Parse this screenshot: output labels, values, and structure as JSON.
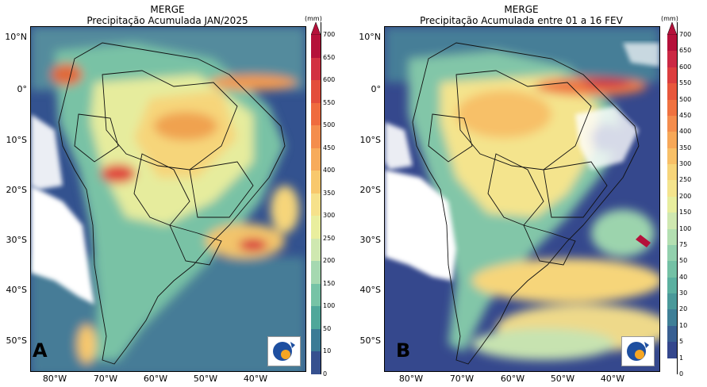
{
  "panels": [
    {
      "letter": "A",
      "title_line1": "MERGE",
      "title_line2": "Precipitação Acumulada JAN/2025",
      "colorbar": {
        "unit": "(mm)",
        "ticks": [
          "700",
          "650",
          "600",
          "550",
          "500",
          "450",
          "400",
          "350",
          "300",
          "250",
          "200",
          "150",
          "100",
          "50",
          "10",
          "0"
        ],
        "colors": [
          "#b5103a",
          "#d23142",
          "#e34d3b",
          "#ef6b3e",
          "#f48d4d",
          "#f7ab5b",
          "#f8c86d",
          "#f6e18b",
          "#e9ee9e",
          "#cfe8b0",
          "#a5d8b0",
          "#76c3a6",
          "#4fa79a",
          "#3b7b96",
          "#36508f",
          "#ffffff"
        ]
      },
      "lat_labels": [
        "10°N",
        "0°",
        "10°S",
        "20°S",
        "30°S",
        "40°S",
        "50°S"
      ],
      "lon_labels": [
        "80°W",
        "70°W",
        "60°W",
        "50°W",
        "40°W"
      ],
      "logo_icon": "inpe-logo-icon"
    },
    {
      "letter": "B",
      "title_line1": "MERGE",
      "title_line2": "Precipitação Acumulada entre 01 a  16 FEV",
      "colorbar": {
        "unit": "(mm)",
        "ticks": [
          "700",
          "650",
          "600",
          "550",
          "500",
          "450",
          "400",
          "350",
          "300",
          "250",
          "200",
          "150",
          "100",
          "75",
          "50",
          "40",
          "30",
          "20",
          "10",
          "5",
          "1",
          "0"
        ],
        "colors": [
          "#b5103a",
          "#cb2844",
          "#dc3e3f",
          "#e8573c",
          "#f07240",
          "#f48d4d",
          "#f7a858",
          "#f8c067",
          "#f7d57a",
          "#f4e48d",
          "#e8ee9e",
          "#cfe8b0",
          "#b3dfb1",
          "#92d0ad",
          "#74c1a5",
          "#5bb0a0",
          "#4a999a",
          "#3f7f97",
          "#385f92",
          "#34478d",
          "#ffffff"
        ]
      },
      "lat_labels": [
        "10°N",
        "0°",
        "10°S",
        "20°S",
        "30°S",
        "40°S",
        "50°S"
      ],
      "lon_labels": [
        "80°W",
        "70°W",
        "60°W",
        "50°W",
        "40°W"
      ],
      "logo_icon": "inpe-logo-icon"
    }
  ]
}
